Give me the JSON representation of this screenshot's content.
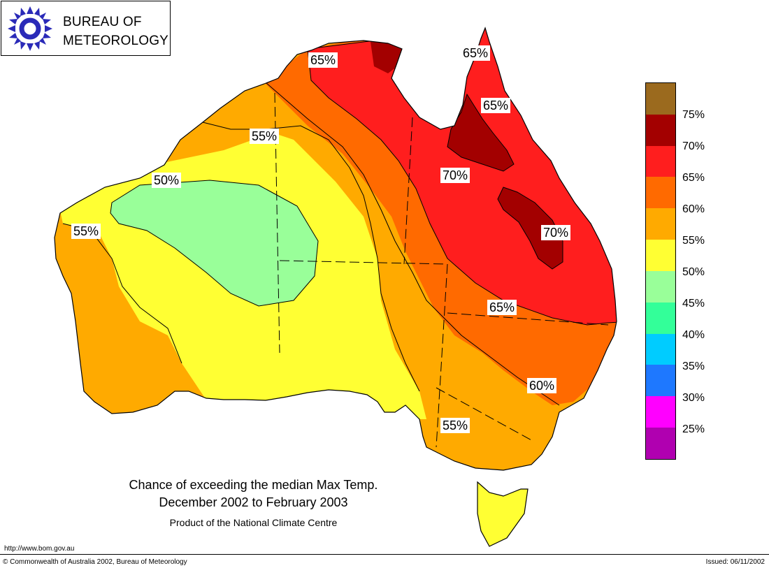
{
  "logo": {
    "line1": "BUREAU OF",
    "line2": "METEOROLOGY",
    "icon": "bom-swirl-logo"
  },
  "caption": {
    "title": "Chance of exceeding the median Max Temp.",
    "period": "December 2002 to February 2003",
    "product": "Product of the National Climate Centre"
  },
  "footer": {
    "url": "http://www.bom.gov.au",
    "copyright": "© Commonwealth of Australia 2002, Bureau of Meteorology",
    "issued": "Issued: 06/11/2002"
  },
  "contour_labels": [
    {
      "text": "65%"
    },
    {
      "text": "65%"
    },
    {
      "text": "65%"
    },
    {
      "text": "55%"
    },
    {
      "text": "50%"
    },
    {
      "text": "55%"
    },
    {
      "text": "70%"
    },
    {
      "text": "70%"
    },
    {
      "text": "65%"
    },
    {
      "text": "60%"
    },
    {
      "text": "55%"
    }
  ],
  "legend": [
    {
      "label": "",
      "color": "#9B6A1E"
    },
    {
      "label": "75%",
      "color": "#A30000"
    },
    {
      "label": "70%",
      "color": "#FF1E1E"
    },
    {
      "label": "65%",
      "color": "#FF6A00"
    },
    {
      "label": "60%",
      "color": "#FFAA00"
    },
    {
      "label": "55%",
      "color": "#FFFF33"
    },
    {
      "label": "50%",
      "color": "#99FF99"
    },
    {
      "label": "45%",
      "color": "#33FF99"
    },
    {
      "label": "40%",
      "color": "#00CCFF"
    },
    {
      "label": "35%",
      "color": "#1E78FF"
    },
    {
      "label": "30%",
      "color": "#FF00FF"
    },
    {
      "label": "25%",
      "color": "#B000B0"
    }
  ]
}
